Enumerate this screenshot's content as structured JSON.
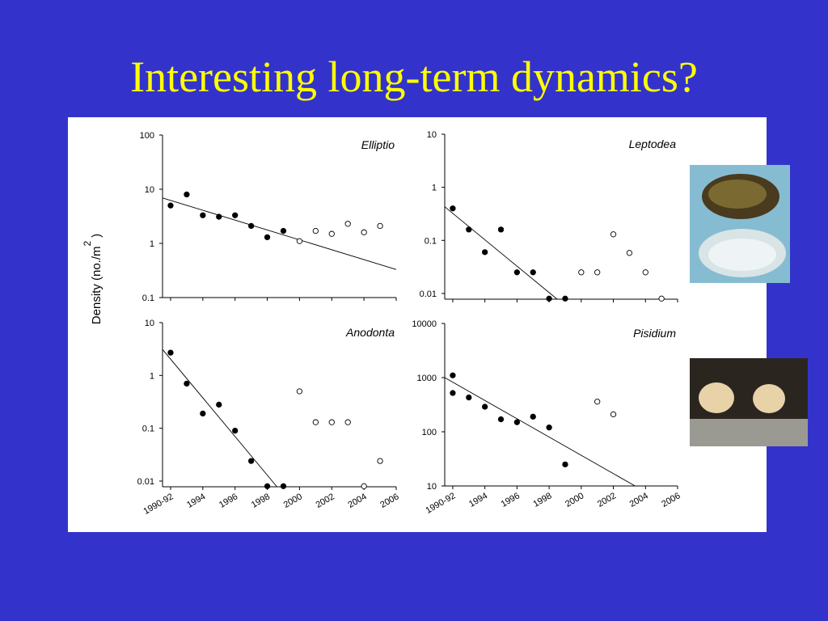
{
  "title": "Interesting long-term dynamics?",
  "y_label": {
    "text": "Density (no./m",
    "sup": "2",
    "end": ")"
  },
  "chart_data": [
    {
      "type": "scatter",
      "title": "Elliptio",
      "log": true,
      "xtick_labels": false,
      "xlim": [
        1991.5,
        2006
      ],
      "xticks": [
        1992,
        1994,
        1996,
        1998,
        2000,
        2002,
        2004,
        2006
      ],
      "ylim": [
        0.1,
        100
      ],
      "yticks": [
        0.1,
        1,
        10,
        100
      ],
      "series": [
        {
          "color": "#000000",
          "filled": true,
          "x": [
            1992,
            1993,
            1994,
            1995,
            1996,
            1997,
            1998,
            1999
          ],
          "values": [
            5,
            8,
            3.3,
            3.1,
            3.3,
            2.1,
            1.3,
            1.7
          ]
        },
        {
          "color": "#000000",
          "filled": false,
          "x": [
            2000,
            2001,
            2002,
            2003,
            2004,
            2005
          ],
          "values": [
            1.1,
            1.7,
            1.5,
            2.3,
            1.6,
            2.1
          ]
        }
      ],
      "trend": {
        "x": [
          1991.5,
          2006
        ],
        "values": [
          6.9,
          0.33
        ]
      }
    },
    {
      "type": "scatter",
      "title": "Leptodea",
      "log": true,
      "xtick_labels": false,
      "xlim": [
        1991.5,
        2006
      ],
      "xticks": [
        1992,
        1994,
        1996,
        1998,
        2000,
        2002,
        2004,
        2006
      ],
      "ylim": [
        0.0078,
        10
      ],
      "yticks": [
        0.01,
        0.1,
        1,
        10
      ],
      "series": [
        {
          "color": "#000000",
          "filled": true,
          "x": [
            1992,
            1993,
            1994,
            1995,
            1996,
            1997,
            1998,
            1999
          ],
          "values": [
            0.4,
            0.16,
            0.06,
            0.16,
            0.025,
            0.025,
            0.008,
            0.008
          ]
        },
        {
          "color": "#000000",
          "filled": false,
          "x": [
            2000,
            2001,
            2002,
            2003,
            2004,
            2005
          ],
          "values": [
            0.025,
            0.025,
            0.13,
            0.058,
            0.025,
            0.008
          ]
        }
      ],
      "trend": {
        "x": [
          1991.5,
          1998.5
        ],
        "values": [
          0.43,
          0.0078
        ]
      }
    },
    {
      "type": "scatter",
      "title": "Anodonta",
      "log": true,
      "xtick_labels": true,
      "xlim": [
        1991.5,
        2006
      ],
      "xticks": [
        {
          "value": 1992,
          "label": "1990-92"
        },
        1994,
        1996,
        1998,
        2000,
        2002,
        2004,
        2006
      ],
      "ylim": [
        0.0078,
        10
      ],
      "yticks": [
        0.01,
        0.1,
        1,
        10
      ],
      "series": [
        {
          "color": "#000000",
          "filled": true,
          "x": [
            1992,
            1993,
            1994,
            1995,
            1996,
            1997,
            1998,
            1999
          ],
          "values": [
            2.7,
            0.7,
            0.19,
            0.28,
            0.09,
            0.024,
            0.008,
            0.008
          ]
        },
        {
          "color": "#000000",
          "filled": false,
          "x": [
            2000,
            2001,
            2002,
            2003,
            2004,
            2005
          ],
          "values": [
            0.5,
            0.13,
            0.13,
            0.13,
            0.008,
            0.024
          ]
        }
      ],
      "trend": {
        "x": [
          1991.5,
          1998.6
        ],
        "values": [
          3.1,
          0.0078
        ]
      }
    },
    {
      "type": "scatter",
      "title": "Pisidium",
      "log": true,
      "xtick_labels": true,
      "xlim": [
        1991.5,
        2006
      ],
      "xticks": [
        {
          "value": 1992,
          "label": "1990-92"
        },
        1994,
        1996,
        1998,
        2000,
        2002,
        2004,
        2006
      ],
      "ylim": [
        10,
        10000
      ],
      "yticks": [
        10,
        100,
        1000,
        10000
      ],
      "series": [
        {
          "color": "#000000",
          "filled": true,
          "x": [
            1992,
            1992,
            1993,
            1994,
            1995,
            1996,
            1997,
            1998,
            1999
          ],
          "values": [
            1100,
            520,
            430,
            290,
            170,
            150,
            190,
            120,
            25
          ]
        },
        {
          "color": "#000000",
          "filled": false,
          "x": [
            2001,
            2002
          ],
          "values": [
            360,
            210
          ]
        }
      ],
      "trend": {
        "x": [
          1991.5,
          2003.35
        ],
        "values": [
          1000,
          10
        ]
      }
    }
  ]
}
